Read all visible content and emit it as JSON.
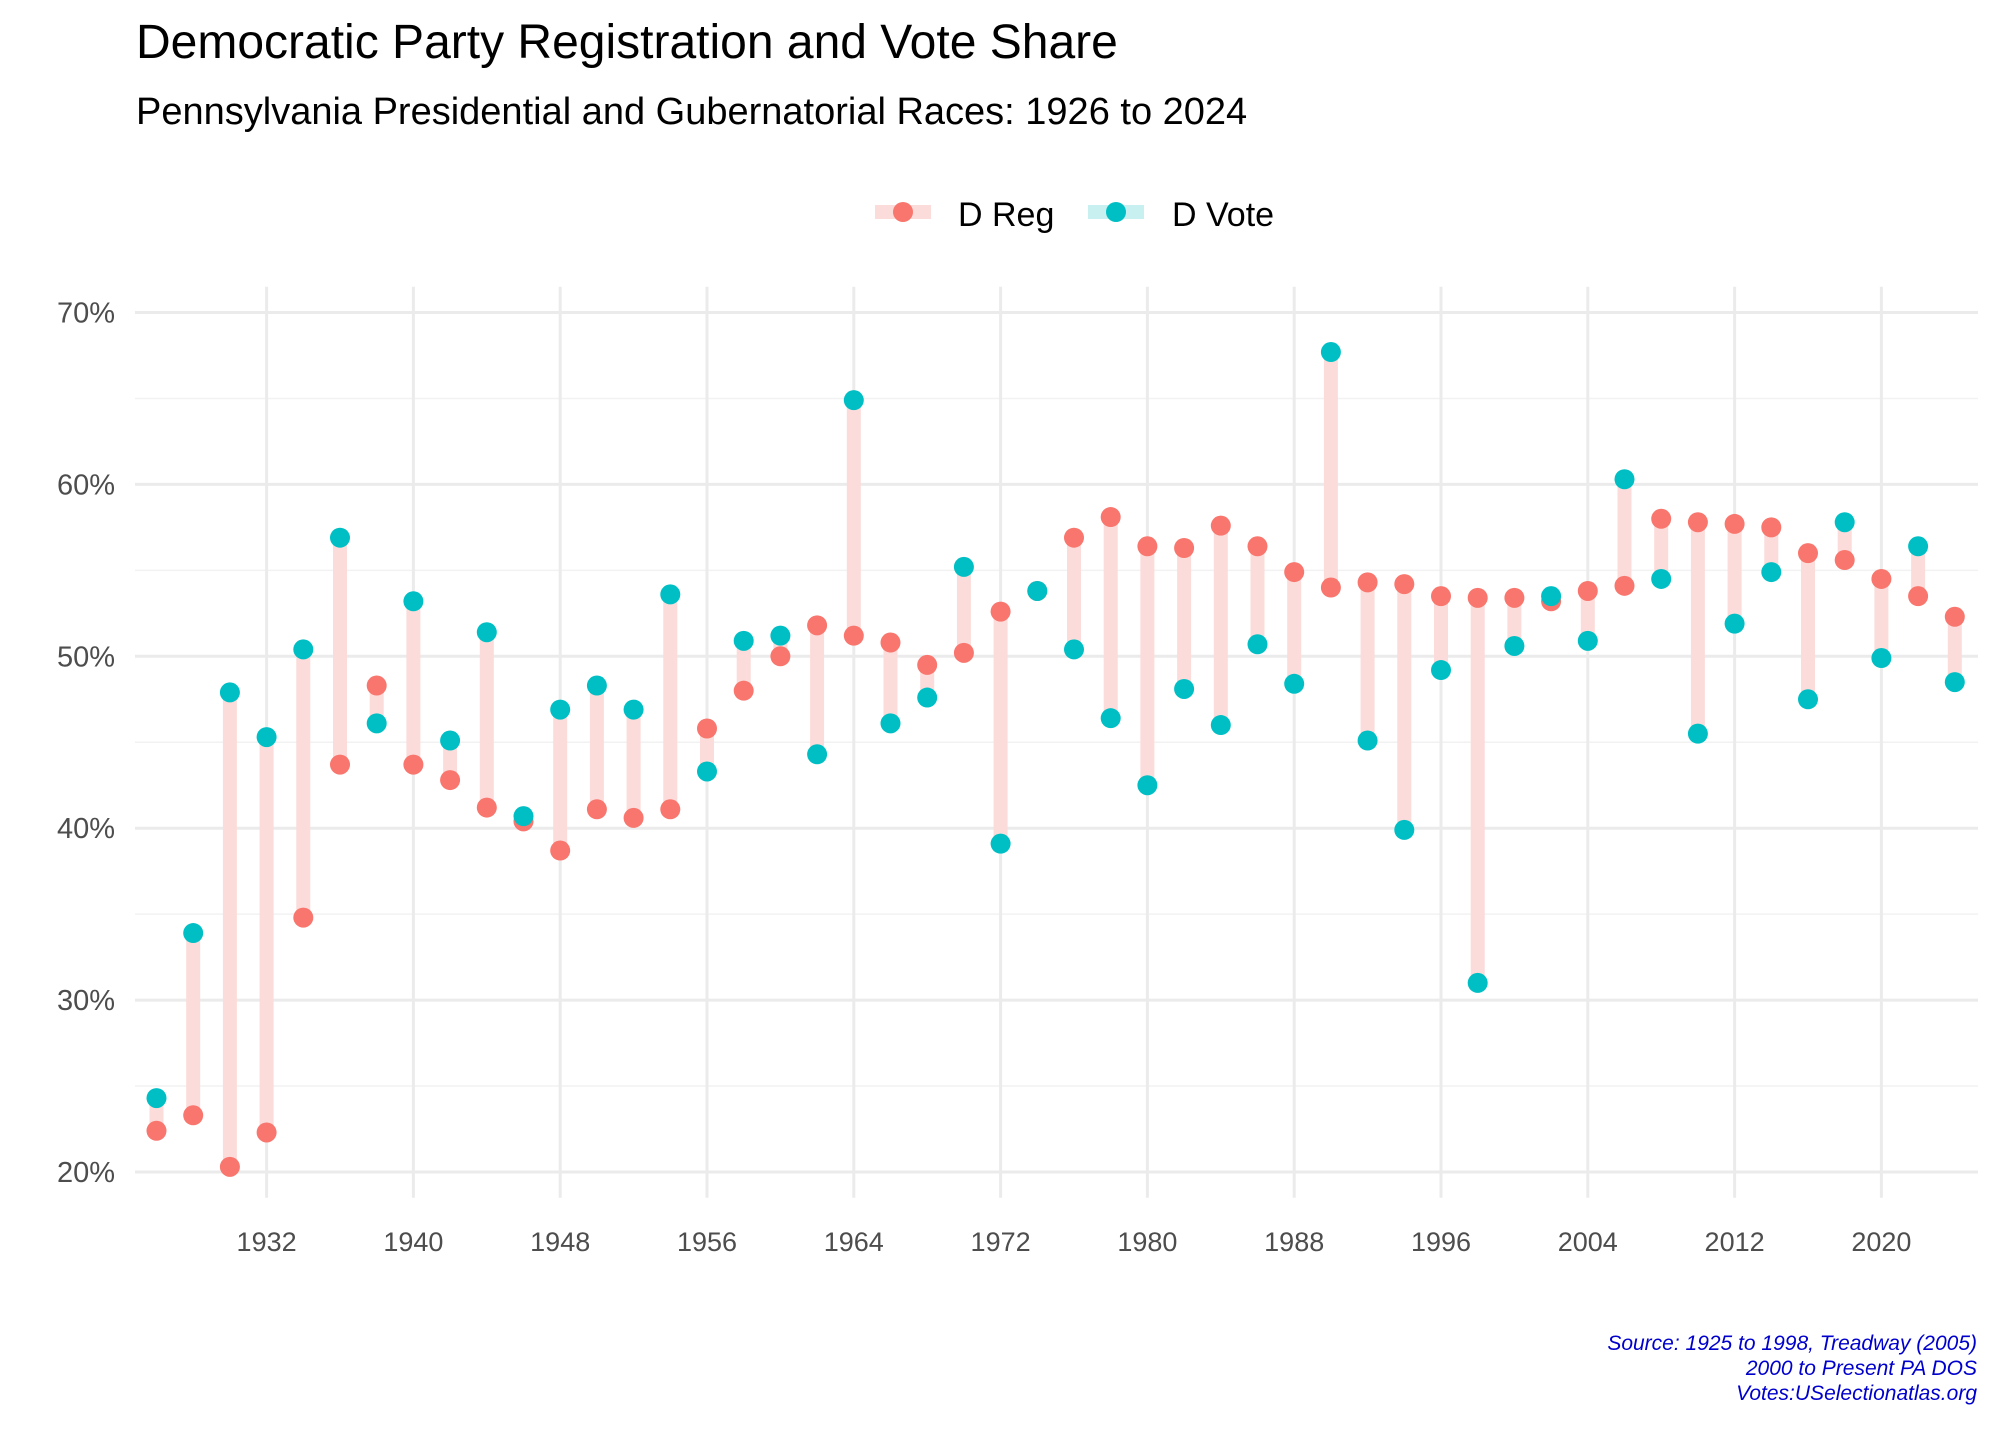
{
  "chart_data": {
    "type": "dumbbell",
    "title": "Democratic Party Registration and Vote Share",
    "subtitle": "Pennsylvania Presidential and Gubernatorial Races: 1926 to 2024",
    "caption": [
      "Source: 1925 to 1998, Treadway (2005)",
      "2000 to Present PA DOS",
      "Votes:USelectionatlas.org"
    ],
    "xlabel": "",
    "ylabel": "",
    "xlim": [
      1925,
      2025
    ],
    "ylim": [
      18.5,
      71.5
    ],
    "x_ticks": [
      "1932",
      "1940",
      "1948",
      "1956",
      "1964",
      "1972",
      "1980",
      "1988",
      "1996",
      "2004",
      "2012",
      "2020"
    ],
    "y_ticks": [
      "20%",
      "30%",
      "40%",
      "50%",
      "60%",
      "70%"
    ],
    "grid": true,
    "legend_position": "top",
    "colors": {
      "D Reg": "#F8766D",
      "D Vote": "#00BFC4",
      "segment": "#FBDCDA",
      "caption": "#0000CC"
    },
    "x": [
      1926,
      1928,
      1930,
      1932,
      1934,
      1936,
      1938,
      1940,
      1942,
      1944,
      1946,
      1948,
      1950,
      1952,
      1954,
      1956,
      1958,
      1960,
      1962,
      1964,
      1966,
      1968,
      1970,
      1972,
      1974,
      1976,
      1978,
      1980,
      1982,
      1984,
      1986,
      1988,
      1990,
      1992,
      1994,
      1996,
      1998,
      2000,
      2002,
      2004,
      2006,
      2008,
      2010,
      2012,
      2014,
      2016,
      2018,
      2020,
      2022,
      2024
    ],
    "series": [
      {
        "name": "D Reg",
        "values": [
          22.4,
          23.3,
          20.3,
          22.3,
          34.8,
          43.7,
          48.3,
          43.7,
          42.8,
          41.2,
          40.4,
          38.7,
          41.1,
          40.6,
          41.1,
          45.8,
          48.0,
          50.0,
          51.8,
          51.2,
          50.8,
          49.5,
          50.2,
          52.6,
          53.8,
          56.9,
          58.1,
          56.4,
          56.3,
          57.6,
          56.4,
          54.9,
          54.0,
          54.3,
          54.2,
          53.5,
          53.4,
          53.4,
          53.2,
          53.8,
          54.1,
          58.0,
          57.8,
          57.7,
          57.5,
          56.0,
          55.6,
          54.5,
          53.5,
          52.3
        ]
      },
      {
        "name": "D Vote",
        "values": [
          24.3,
          33.9,
          47.9,
          45.3,
          50.4,
          56.9,
          46.1,
          53.2,
          45.1,
          51.4,
          40.7,
          46.9,
          48.3,
          46.9,
          53.6,
          43.3,
          50.9,
          51.2,
          44.3,
          64.9,
          46.1,
          47.6,
          55.2,
          39.1,
          53.8,
          50.4,
          46.4,
          42.5,
          48.1,
          46.0,
          50.7,
          48.4,
          67.7,
          45.1,
          39.9,
          49.2,
          31.0,
          50.6,
          53.5,
          50.9,
          60.3,
          54.5,
          45.5,
          51.9,
          54.9,
          47.5,
          57.8,
          49.9,
          56.4,
          48.5
        ]
      }
    ]
  }
}
